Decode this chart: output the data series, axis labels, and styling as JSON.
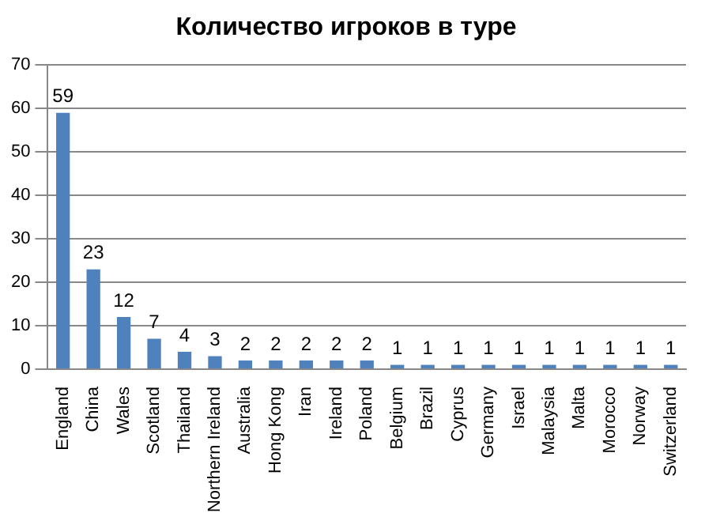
{
  "chart_data": {
    "type": "bar",
    "title": "Количество игроков в туре",
    "categories": [
      "England",
      "China",
      "Wales",
      "Scotland",
      "Thailand",
      "Northern Ireland",
      "Australia",
      "Hong Kong",
      "Iran",
      "Ireland",
      "Poland",
      "Belgium",
      "Brazil",
      "Cyprus",
      "Germany",
      "Israel",
      "Malaysia",
      "Malta",
      "Morocco",
      "Norway",
      "Switzerland"
    ],
    "values": [
      59,
      23,
      12,
      7,
      4,
      3,
      2,
      2,
      2,
      2,
      2,
      1,
      1,
      1,
      1,
      1,
      1,
      1,
      1,
      1,
      1
    ],
    "color": "#4f81bd",
    "ylim": [
      0,
      70
    ],
    "yticks": [
      0,
      10,
      20,
      30,
      40,
      50,
      60,
      70
    ],
    "grid": "y",
    "data_labels": true,
    "legend": false
  }
}
